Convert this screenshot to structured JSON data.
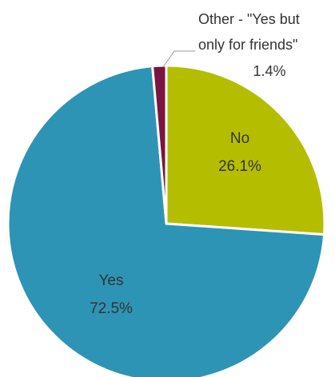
{
  "chart_data": {
    "type": "pie",
    "slices": [
      {
        "label": "No",
        "value": 26.1,
        "value_label": "26.1%",
        "color": "#b5bd00"
      },
      {
        "label": "Yes",
        "value": 72.5,
        "value_label": "72.5%",
        "color": "#2e94b5"
      },
      {
        "label_lines": [
          "Other - \"Yes but",
          "only for friends\""
        ],
        "value": 1.4,
        "value_label": "1.4%",
        "color": "#7a1440"
      }
    ],
    "start_angle_deg": 0,
    "direction": "clockwise",
    "separator_color": "#ffffff"
  }
}
